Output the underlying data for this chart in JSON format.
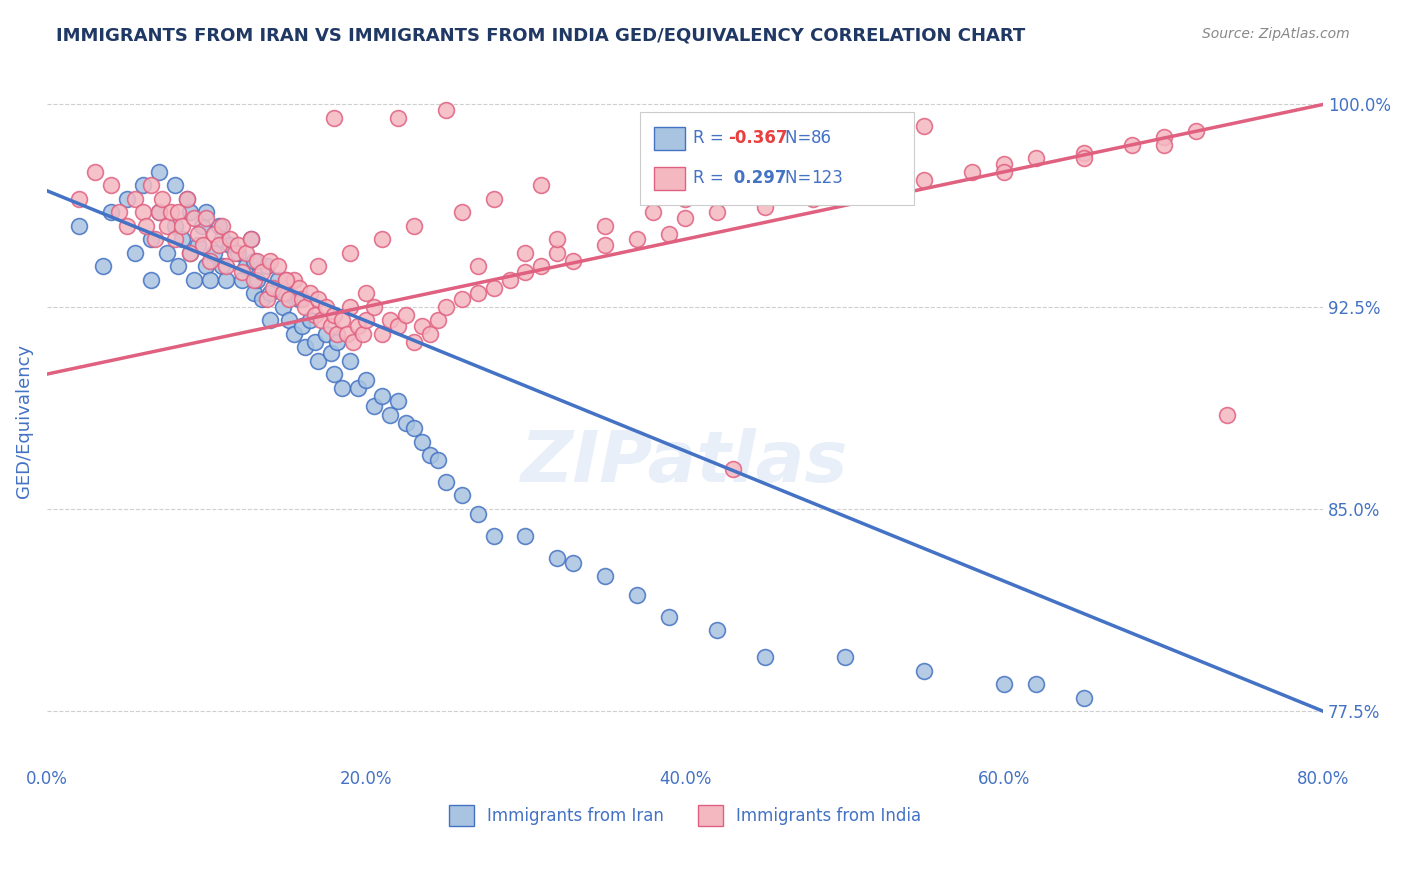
{
  "title": "IMMIGRANTS FROM IRAN VS IMMIGRANTS FROM INDIA GED/EQUIVALENCY CORRELATION CHART",
  "source": "Source: ZipAtlas.com",
  "xlabel_iran": "Immigrants from Iran",
  "xlabel_india": "Immigrants from India",
  "ylabel": "GED/Equivalency",
  "r_iran": -0.367,
  "n_iran": 86,
  "r_india": 0.297,
  "n_india": 123,
  "xlim": [
    0.0,
    0.8
  ],
  "ylim": [
    0.755,
    1.01
  ],
  "yticks": [
    0.775,
    0.85,
    0.925,
    1.0
  ],
  "ytick_labels": [
    "77.5%",
    "85.0%",
    "92.5%",
    "100.0%"
  ],
  "xtick_vals": [
    0.0,
    0.2,
    0.4,
    0.6,
    0.8
  ],
  "xtick_labels": [
    "0.0%",
    "20.0%",
    "40.0%",
    "60.0%",
    "80.0%"
  ],
  "color_iran": "#a8c4e0",
  "color_iran_line": "#4472c4",
  "color_india": "#f4b8c1",
  "color_india_line": "#e06080",
  "title_color": "#1f3864",
  "axis_label_color": "#4472c4",
  "tick_color": "#4472c4",
  "grid_color": "#b0b0b0",
  "iran_scatter_x": [
    0.02,
    0.035,
    0.04,
    0.05,
    0.055,
    0.06,
    0.065,
    0.065,
    0.07,
    0.07,
    0.075,
    0.08,
    0.08,
    0.082,
    0.085,
    0.088,
    0.09,
    0.09,
    0.092,
    0.095,
    0.097,
    0.1,
    0.1,
    0.102,
    0.105,
    0.108,
    0.11,
    0.11,
    0.112,
    0.115,
    0.12,
    0.122,
    0.125,
    0.128,
    0.13,
    0.13,
    0.132,
    0.135,
    0.138,
    0.14,
    0.14,
    0.145,
    0.148,
    0.15,
    0.152,
    0.155,
    0.158,
    0.16,
    0.162,
    0.165,
    0.168,
    0.17,
    0.175,
    0.178,
    0.18,
    0.182,
    0.185,
    0.19,
    0.195,
    0.2,
    0.205,
    0.21,
    0.215,
    0.22,
    0.225,
    0.23,
    0.235,
    0.24,
    0.245,
    0.25,
    0.26,
    0.27,
    0.28,
    0.3,
    0.32,
    0.33,
    0.35,
    0.37,
    0.39,
    0.42,
    0.45,
    0.5,
    0.55,
    0.6,
    0.62,
    0.65
  ],
  "iran_scatter_y": [
    0.955,
    0.94,
    0.96,
    0.965,
    0.945,
    0.97,
    0.95,
    0.935,
    0.96,
    0.975,
    0.945,
    0.955,
    0.97,
    0.94,
    0.95,
    0.965,
    0.945,
    0.96,
    0.935,
    0.948,
    0.955,
    0.94,
    0.96,
    0.935,
    0.945,
    0.955,
    0.94,
    0.95,
    0.935,
    0.948,
    0.945,
    0.935,
    0.94,
    0.95,
    0.93,
    0.942,
    0.935,
    0.928,
    0.94,
    0.93,
    0.92,
    0.935,
    0.925,
    0.93,
    0.92,
    0.915,
    0.928,
    0.918,
    0.91,
    0.92,
    0.912,
    0.905,
    0.915,
    0.908,
    0.9,
    0.912,
    0.895,
    0.905,
    0.895,
    0.898,
    0.888,
    0.892,
    0.885,
    0.89,
    0.882,
    0.88,
    0.875,
    0.87,
    0.868,
    0.86,
    0.855,
    0.848,
    0.84,
    0.84,
    0.832,
    0.83,
    0.825,
    0.818,
    0.81,
    0.805,
    0.795,
    0.795,
    0.79,
    0.785,
    0.785,
    0.78
  ],
  "india_scatter_x": [
    0.02,
    0.03,
    0.04,
    0.045,
    0.05,
    0.055,
    0.06,
    0.062,
    0.065,
    0.068,
    0.07,
    0.072,
    0.075,
    0.078,
    0.08,
    0.082,
    0.085,
    0.088,
    0.09,
    0.092,
    0.095,
    0.098,
    0.1,
    0.102,
    0.105,
    0.108,
    0.11,
    0.112,
    0.115,
    0.118,
    0.12,
    0.122,
    0.125,
    0.128,
    0.13,
    0.132,
    0.135,
    0.138,
    0.14,
    0.142,
    0.145,
    0.148,
    0.15,
    0.152,
    0.155,
    0.158,
    0.16,
    0.162,
    0.165,
    0.168,
    0.17,
    0.172,
    0.175,
    0.178,
    0.18,
    0.182,
    0.185,
    0.188,
    0.19,
    0.192,
    0.195,
    0.198,
    0.2,
    0.205,
    0.21,
    0.215,
    0.22,
    0.225,
    0.23,
    0.235,
    0.24,
    0.245,
    0.25,
    0.26,
    0.27,
    0.28,
    0.29,
    0.3,
    0.31,
    0.32,
    0.33,
    0.35,
    0.37,
    0.39,
    0.4,
    0.42,
    0.43,
    0.45,
    0.48,
    0.5,
    0.52,
    0.55,
    0.58,
    0.6,
    0.62,
    0.65,
    0.68,
    0.7,
    0.72,
    0.74,
    0.55,
    0.18,
    0.2,
    0.22,
    0.25,
    0.27,
    0.3,
    0.32,
    0.35,
    0.38,
    0.4,
    0.43,
    0.6,
    0.65,
    0.7,
    0.15,
    0.17,
    0.19,
    0.21,
    0.23,
    0.26,
    0.28,
    0.31
  ],
  "india_scatter_y": [
    0.965,
    0.975,
    0.97,
    0.96,
    0.955,
    0.965,
    0.96,
    0.955,
    0.97,
    0.95,
    0.96,
    0.965,
    0.955,
    0.96,
    0.95,
    0.96,
    0.955,
    0.965,
    0.945,
    0.958,
    0.952,
    0.948,
    0.958,
    0.942,
    0.952,
    0.948,
    0.955,
    0.94,
    0.95,
    0.945,
    0.948,
    0.938,
    0.945,
    0.95,
    0.935,
    0.942,
    0.938,
    0.928,
    0.942,
    0.932,
    0.94,
    0.93,
    0.935,
    0.928,
    0.935,
    0.932,
    0.928,
    0.925,
    0.93,
    0.922,
    0.928,
    0.92,
    0.925,
    0.918,
    0.922,
    0.915,
    0.92,
    0.915,
    0.925,
    0.912,
    0.918,
    0.915,
    0.92,
    0.925,
    0.915,
    0.92,
    0.918,
    0.922,
    0.912,
    0.918,
    0.915,
    0.92,
    0.925,
    0.928,
    0.93,
    0.932,
    0.935,
    0.938,
    0.94,
    0.945,
    0.942,
    0.948,
    0.95,
    0.952,
    0.958,
    0.96,
    0.865,
    0.962,
    0.965,
    0.968,
    0.97,
    0.972,
    0.975,
    0.978,
    0.98,
    0.982,
    0.985,
    0.988,
    0.99,
    0.885,
    0.992,
    0.995,
    0.93,
    0.995,
    0.998,
    0.94,
    0.945,
    0.95,
    0.955,
    0.96,
    0.965,
    0.97,
    0.975,
    0.98,
    0.985,
    0.935,
    0.94,
    0.945,
    0.95,
    0.955,
    0.96,
    0.965,
    0.97
  ],
  "iran_trend_x": [
    0.0,
    0.8
  ],
  "iran_trend_y": [
    0.968,
    0.775
  ],
  "india_trend_x": [
    0.0,
    0.8
  ],
  "india_trend_y": [
    0.9,
    1.0
  ]
}
